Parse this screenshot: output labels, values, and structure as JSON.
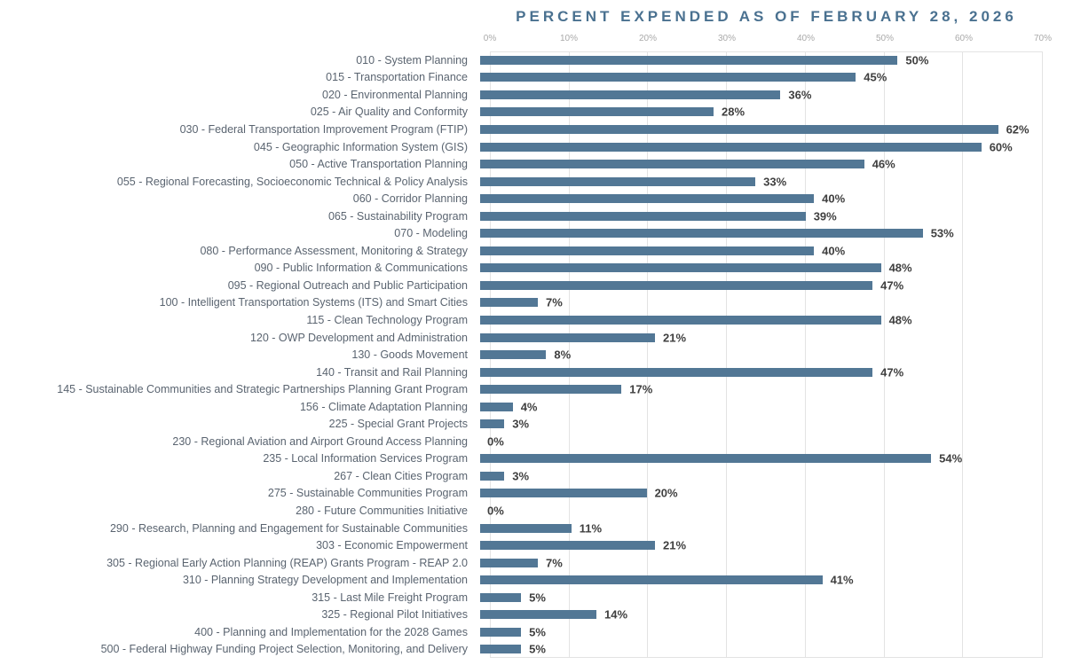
{
  "title": "PERCENT EXPENDED AS OF FEBRUARY 28, 2026",
  "colors": {
    "bar": "#527795",
    "title": "#4a7190",
    "tick_label": "#a9a9a9",
    "category_label": "#5a6470",
    "value_label": "#3f3f3f",
    "gridline": "#e3e3e3"
  },
  "chart_data": {
    "type": "bar",
    "orientation": "horizontal",
    "title": "PERCENT EXPENDED AS OF FEBRUARY 28, 2026",
    "xlabel": "",
    "ylabel": "",
    "xlim": [
      0,
      70
    ],
    "x_ticks": [
      "0%",
      "10%",
      "20%",
      "30%",
      "40%",
      "50%",
      "60%",
      "70%"
    ],
    "grid": true,
    "legend": false,
    "value_label_suffix": "%",
    "categories": [
      "010 - System Planning",
      "015 - Transportation Finance",
      "020 - Environmental Planning",
      "025 - Air Quality and Conformity",
      "030 - Federal Transportation Improvement Program (FTIP)",
      "045 - Geographic Information System (GIS)",
      "050 - Active Transportation Planning",
      "055 - Regional Forecasting, Socioeconomic Technical & Policy Analysis",
      "060 - Corridor Planning",
      "065 - Sustainability Program",
      "070 - Modeling",
      "080 - Performance Assessment, Monitoring & Strategy",
      "090 - Public Information & Communications",
      "095 - Regional Outreach and Public Participation",
      "100 - Intelligent Transportation Systems (ITS) and Smart Cities",
      "115 - Clean Technology Program",
      "120 - OWP Development and Administration",
      "130 - Goods Movement",
      "140 - Transit and Rail Planning",
      "145 - Sustainable Communities and Strategic Partnerships Planning Grant Program",
      "156 - Climate Adaptation Planning",
      "225 - Special Grant Projects",
      "230 - Regional Aviation and Airport Ground Access Planning",
      "235 - Local Information Services Program",
      "267 - Clean Cities Program",
      "275 - Sustainable Communities Program",
      "280 - Future Communities Initiative",
      "290 - Research, Planning and Engagement for Sustainable Communities",
      "303 - Economic Empowerment",
      "305 - Regional Early Action Planning (REAP) Grants Program - REAP 2.0",
      "310 - Planning Strategy Development and Implementation",
      "315 - Last Mile Freight Program",
      "325 - Regional Pilot Initiatives",
      "400 - Planning and Implementation for the 2028 Games",
      "500 - Federal Highway Funding Project Selection, Monitoring, and Delivery"
    ],
    "values": [
      50,
      45,
      36,
      28,
      62,
      60,
      46,
      33,
      40,
      39,
      53,
      40,
      48,
      47,
      7,
      48,
      21,
      8,
      47,
      17,
      4,
      3,
      0,
      54,
      3,
      20,
      0,
      11,
      21,
      7,
      41,
      5,
      14,
      5,
      5
    ]
  }
}
